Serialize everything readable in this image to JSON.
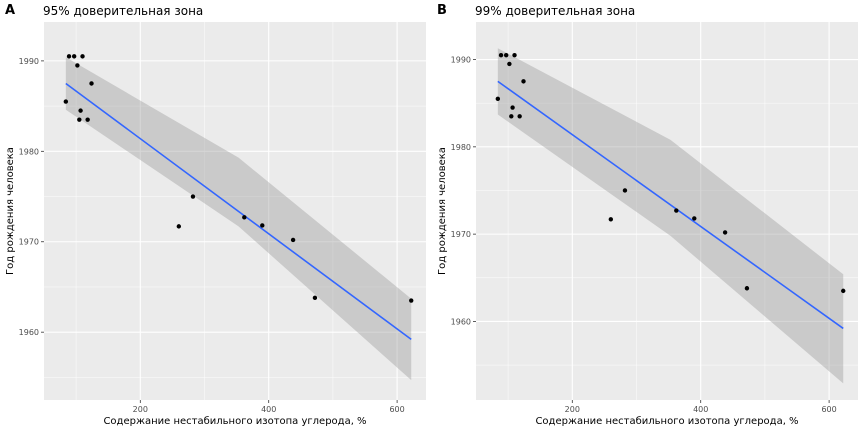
{
  "figure": {
    "panels": [
      {
        "tag": "A",
        "title": "95% доверительная зона"
      },
      {
        "tag": "B",
        "title": "99% доверительная зона"
      }
    ]
  },
  "chart_data": [
    {
      "type": "scatter",
      "title": "95% доверительная зона",
      "xlabel": "Содержание нестабильного изотопа углерода, %",
      "ylabel": "Год рождения человека",
      "xlim": [
        50,
        645
      ],
      "ylim": [
        1952.5,
        1994.3
      ],
      "x_ticks": [
        200,
        400,
        600
      ],
      "y_ticks": [
        1960,
        1970,
        1980,
        1990
      ],
      "grid": true,
      "points": [
        {
          "x": 84,
          "y": 1985.5
        },
        {
          "x": 89,
          "y": 1990.5
        },
        {
          "x": 97,
          "y": 1990.5
        },
        {
          "x": 102,
          "y": 1989.5
        },
        {
          "x": 105,
          "y": 1983.5
        },
        {
          "x": 107,
          "y": 1984.5
        },
        {
          "x": 110,
          "y": 1990.5
        },
        {
          "x": 118,
          "y": 1983.5
        },
        {
          "x": 124,
          "y": 1987.5
        },
        {
          "x": 260,
          "y": 1971.7
        },
        {
          "x": 282,
          "y": 1975.0
        },
        {
          "x": 362,
          "y": 1972.7
        },
        {
          "x": 390,
          "y": 1971.8
        },
        {
          "x": 438,
          "y": 1970.2
        },
        {
          "x": 472,
          "y": 1963.8
        },
        {
          "x": 622,
          "y": 1963.5
        }
      ],
      "fit_line": {
        "x_range": [
          84,
          622
        ],
        "y_start": 1987.5,
        "y_end": 1959.2
      },
      "confidence_band": {
        "level": "95%",
        "x": [
          84,
          353,
          622
        ],
        "upper": [
          1990.4,
          1979.3,
          1963.7
        ],
        "lower": [
          1984.6,
          1971.7,
          1954.7
        ]
      }
    },
    {
      "type": "scatter",
      "title": "99% доверительная зона",
      "xlabel": "Содержание нестабильного изотопа углерода, %",
      "ylabel": "Год рождения человека",
      "xlim": [
        50,
        645
      ],
      "ylim": [
        1951.0,
        1994.3
      ],
      "x_ticks": [
        200,
        400,
        600
      ],
      "y_ticks": [
        1960,
        1970,
        1980,
        1990
      ],
      "grid": true,
      "points": [
        {
          "x": 84,
          "y": 1985.5
        },
        {
          "x": 89,
          "y": 1990.5
        },
        {
          "x": 97,
          "y": 1990.5
        },
        {
          "x": 102,
          "y": 1989.5
        },
        {
          "x": 105,
          "y": 1983.5
        },
        {
          "x": 107,
          "y": 1984.5
        },
        {
          "x": 110,
          "y": 1990.5
        },
        {
          "x": 118,
          "y": 1983.5
        },
        {
          "x": 124,
          "y": 1987.5
        },
        {
          "x": 260,
          "y": 1971.7
        },
        {
          "x": 282,
          "y": 1975.0
        },
        {
          "x": 362,
          "y": 1972.7
        },
        {
          "x": 390,
          "y": 1971.8
        },
        {
          "x": 438,
          "y": 1970.2
        },
        {
          "x": 472,
          "y": 1963.8
        },
        {
          "x": 622,
          "y": 1963.5
        }
      ],
      "fit_line": {
        "x_range": [
          84,
          622
        ],
        "y_start": 1987.5,
        "y_end": 1959.2
      },
      "confidence_band": {
        "level": "99%",
        "x": [
          84,
          353,
          622
        ],
        "upper": [
          1991.3,
          1980.8,
          1965.4
        ],
        "lower": [
          1983.7,
          1969.8,
          1952.9
        ]
      }
    }
  ]
}
